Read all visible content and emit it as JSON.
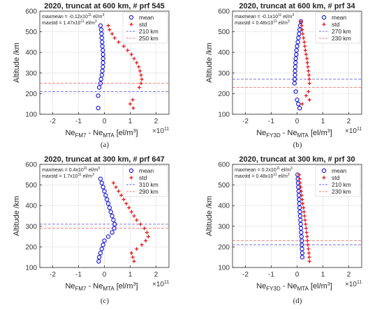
{
  "chart_data": [
    {
      "type": "scatter",
      "title": "2020, truncat at 600 km, # prf 545",
      "ylabel": "Altitude /km",
      "xlabel": {
        "base": "Ne",
        "sub1": "FM7",
        "mid": " - Ne",
        "sub2": "MTA",
        "unit": " [el/m",
        "unit_sup": "3",
        "unit_end": "]"
      },
      "x_multiplier": {
        "base": "×10",
        "exp": "11"
      },
      "xlim": [
        -2.5,
        2.5
      ],
      "ylim": [
        100,
        600
      ],
      "xticks": [
        "-2",
        "-1",
        "0",
        "1",
        "2"
      ],
      "yticks": [
        "100",
        "200",
        "300",
        "400",
        "500",
        "600"
      ],
      "annotation": [
        {
          "pre": "maxmean = -0.12x10",
          "sup": "11",
          "post": " el/m",
          "sup2": "3"
        },
        {
          "pre": "maxstd = 1.47x10",
          "sup": "11",
          "post": " el/m",
          "sup2": "3"
        }
      ],
      "legend": {
        "position": "top-right",
        "entries": [
          "mean",
          "std",
          "210 km",
          "250 km"
        ]
      },
      "hlines": [
        {
          "y": 210,
          "color": "#6a6adf"
        },
        {
          "y": 250,
          "color": "#ee7b7b"
        }
      ],
      "caption": "(a)",
      "series": [
        {
          "name": "mean",
          "marker": "circle",
          "color": "#1f1fd6",
          "x": [
            -0.15,
            -0.12,
            -0.11,
            -0.1,
            -0.09,
            -0.08,
            -0.06,
            -0.05,
            -0.05,
            -0.05,
            -0.06,
            -0.08,
            -0.1,
            -0.13,
            -0.15,
            -0.2,
            -0.24,
            -0.24
          ],
          "y": [
            530,
            510,
            490,
            470,
            450,
            430,
            410,
            390,
            370,
            350,
            330,
            310,
            290,
            270,
            250,
            230,
            190,
            130
          ]
        },
        {
          "name": "std",
          "marker": "plus",
          "color": "#e41a1c",
          "x": [
            0.15,
            0.2,
            0.3,
            0.4,
            0.55,
            0.75,
            0.9,
            1.05,
            1.15,
            1.25,
            1.33,
            1.38,
            1.42,
            1.45,
            1.42,
            1.35,
            1.1,
            1.0,
            1.12
          ],
          "y": [
            530,
            510,
            490,
            470,
            450,
            430,
            410,
            390,
            370,
            350,
            330,
            310,
            290,
            270,
            250,
            230,
            170,
            150,
            130
          ]
        }
      ]
    },
    {
      "type": "scatter",
      "title": "2020, truncat at 600 km, # prf 34",
      "ylabel": "Altitude /km",
      "xlabel": {
        "base": "Ne",
        "sub1": "FY3D",
        "mid": " - Ne",
        "sub2": "MTA",
        "unit": " [el/m",
        "unit_sup": "3",
        "unit_end": "]"
      },
      "x_multiplier": {
        "base": "×10",
        "exp": "11"
      },
      "xlim": [
        -2.5,
        2.5
      ],
      "ylim": [
        100,
        600
      ],
      "xticks": [
        "-2",
        "-1",
        "0",
        "1",
        "2"
      ],
      "yticks": [
        "100",
        "200",
        "300",
        "400",
        "500",
        "600"
      ],
      "annotation": [
        {
          "pre": "maxmean = -0.1x10",
          "sup": "11",
          "post": " el/m",
          "sup2": "3"
        },
        {
          "pre": "maxstd = 0.48x10",
          "sup": "11",
          "post": " el/m",
          "sup2": "3"
        }
      ],
      "legend": {
        "position": "top-right",
        "entries": [
          "mean",
          "std",
          "270 km",
          "230 km"
        ]
      },
      "hlines": [
        {
          "y": 270,
          "color": "#6a6adf"
        },
        {
          "y": 230,
          "color": "#ee7b7b"
        }
      ],
      "caption": "(b)",
      "series": [
        {
          "name": "mean",
          "marker": "circle",
          "color": "#1f1fd6",
          "x": [
            0.15,
            0.12,
            0.1,
            0.08,
            0.05,
            0.03,
            0.0,
            -0.02,
            -0.03,
            -0.05,
            -0.06,
            -0.07,
            -0.08,
            -0.08,
            -0.09,
            -0.1,
            -0.05,
            0.0,
            0.05,
            0.1
          ],
          "y": [
            550,
            530,
            510,
            490,
            470,
            450,
            430,
            410,
            390,
            370,
            350,
            330,
            310,
            290,
            270,
            250,
            210,
            170,
            150,
            130
          ]
        },
        {
          "name": "std",
          "marker": "plus",
          "color": "#e41a1c",
          "x": [
            0.15,
            0.18,
            0.2,
            0.22,
            0.25,
            0.28,
            0.3,
            0.32,
            0.35,
            0.38,
            0.4,
            0.42,
            0.44,
            0.46,
            0.47,
            0.48,
            0.44,
            0.35,
            0.48,
            0.2
          ],
          "y": [
            550,
            530,
            510,
            490,
            470,
            450,
            430,
            410,
            390,
            370,
            350,
            330,
            310,
            290,
            270,
            250,
            210,
            190,
            170,
            150
          ]
        }
      ]
    },
    {
      "type": "scatter",
      "title": "2020, truncat at 300 km, # prf 647",
      "ylabel": "Altitude /km",
      "xlabel": {
        "base": "Ne",
        "sub1": "FM7",
        "mid": " - Ne",
        "sub2": "MTA",
        "unit": " [el/m",
        "unit_sup": "3",
        "unit_end": "]"
      },
      "x_multiplier": {
        "base": "×10",
        "exp": "11"
      },
      "xlim": [
        -2.5,
        2.5
      ],
      "ylim": [
        100,
        600
      ],
      "xticks": [
        "-2",
        "-1",
        "0",
        "1",
        "2"
      ],
      "yticks": [
        "100",
        "200",
        "300",
        "400",
        "500",
        "600"
      ],
      "annotation": [
        {
          "pre": "maxmean = 0.4x10",
          "sup": "11",
          "post": " el/m",
          "sup2": "3"
        },
        {
          "pre": "maxstd = 1.7x10",
          "sup": "11",
          "post": " el/m",
          "sup2": "3"
        }
      ],
      "legend": {
        "position": "top-right",
        "entries": [
          "mean",
          "std",
          "310 km",
          "290 km"
        ]
      },
      "hlines": [
        {
          "y": 310,
          "color": "#6a6adf"
        },
        {
          "y": 290,
          "color": "#ee7b7b"
        }
      ],
      "caption": "(c)",
      "series": [
        {
          "name": "mean",
          "marker": "circle",
          "color": "#1f1fd6",
          "x": [
            -0.15,
            -0.1,
            -0.05,
            0.0,
            0.05,
            0.1,
            0.15,
            0.2,
            0.25,
            0.3,
            0.35,
            0.4,
            0.38,
            0.3,
            0.15,
            0.0,
            -0.05,
            -0.1,
            -0.15,
            -0.2,
            -0.22
          ],
          "y": [
            530,
            510,
            490,
            470,
            450,
            430,
            410,
            390,
            370,
            350,
            330,
            310,
            290,
            270,
            250,
            230,
            210,
            190,
            170,
            150,
            130
          ]
        },
        {
          "name": "std",
          "marker": "plus",
          "color": "#e41a1c",
          "x": [
            0.35,
            0.45,
            0.55,
            0.65,
            0.75,
            0.85,
            0.95,
            1.05,
            1.15,
            1.25,
            1.4,
            1.55,
            1.65,
            1.7,
            1.6,
            1.45,
            1.25,
            1.05,
            1.1,
            1.15
          ],
          "y": [
            510,
            490,
            470,
            450,
            430,
            410,
            390,
            370,
            350,
            330,
            310,
            290,
            270,
            250,
            230,
            210,
            190,
            170,
            150,
            130
          ]
        }
      ]
    },
    {
      "type": "scatter",
      "title": "2020, truncat at 300 km, # prf 30",
      "ylabel": "Altitude /km",
      "xlabel": {
        "base": "Ne",
        "sub1": "FY3D",
        "mid": " - Ne",
        "sub2": "MTA",
        "unit": " [el/m",
        "unit_sup": "3",
        "unit_end": "]"
      },
      "x_multiplier": {
        "base": "×10",
        "exp": "11"
      },
      "xlim": [
        -2.5,
        2.5
      ],
      "ylim": [
        100,
        600
      ],
      "xticks": [
        "-2",
        "-1",
        "0",
        "1",
        "2"
      ],
      "yticks": [
        "100",
        "200",
        "300",
        "400",
        "500",
        "600"
      ],
      "annotation": [
        {
          "pre": "maxmean = 0.2x10",
          "sup": "11",
          "post": " el/m",
          "sup2": "3"
        },
        {
          "pre": "maxstd = 0.48x10",
          "sup": "11",
          "post": " el/m",
          "sup2": "3"
        }
      ],
      "legend": {
        "position": "top-right",
        "entries": [
          "mean",
          "std",
          "210 km",
          "230 km"
        ]
      },
      "hlines": [
        {
          "y": 210,
          "color": "#6a6adf"
        },
        {
          "y": 230,
          "color": "#ee7b7b"
        }
      ],
      "caption": "(d)",
      "series": [
        {
          "name": "mean",
          "marker": "circle",
          "color": "#1f1fd6",
          "x": [
            0.02,
            0.03,
            0.04,
            0.05,
            0.06,
            0.07,
            0.08,
            0.09,
            0.1,
            0.11,
            0.12,
            0.13,
            0.14,
            0.15,
            0.16,
            0.17,
            0.18,
            0.18,
            0.19,
            0.2,
            0.2
          ],
          "y": [
            550,
            530,
            510,
            490,
            470,
            450,
            430,
            410,
            390,
            370,
            350,
            330,
            310,
            290,
            270,
            250,
            230,
            210,
            190,
            170,
            150
          ]
        },
        {
          "name": "std",
          "marker": "plus",
          "color": "#e41a1c",
          "x": [
            0.08,
            0.1,
            0.12,
            0.14,
            0.16,
            0.18,
            0.2,
            0.22,
            0.25,
            0.27,
            0.29,
            0.31,
            0.33,
            0.35,
            0.37,
            0.39,
            0.4,
            0.42,
            0.44,
            0.46,
            0.47,
            0.48
          ],
          "y": [
            550,
            530,
            510,
            490,
            470,
            450,
            430,
            410,
            390,
            370,
            350,
            330,
            310,
            290,
            270,
            250,
            230,
            210,
            190,
            170,
            150,
            130
          ]
        }
      ]
    }
  ]
}
